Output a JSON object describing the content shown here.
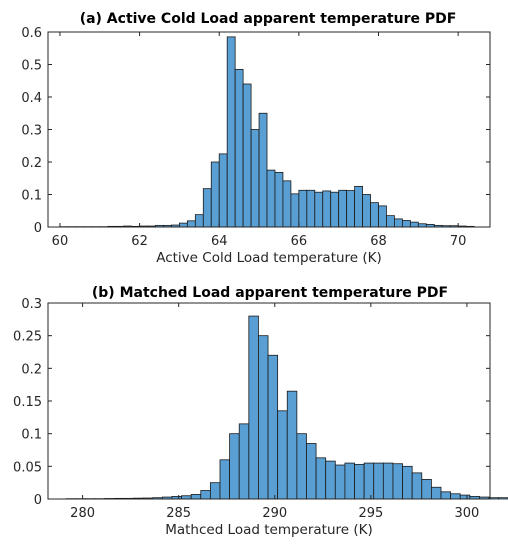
{
  "chart_data": [
    {
      "type": "bar",
      "title": "(a) Active Cold Load apparent temperature PDF",
      "xlabel": "Active Cold Load temperature (K)",
      "ylabel": "",
      "xlim": [
        59.7,
        70.8
      ],
      "ylim": [
        0,
        0.6
      ],
      "xticks": [
        60,
        62,
        64,
        66,
        68,
        70
      ],
      "xtick_labels": [
        "60",
        "62",
        "64",
        "66",
        "68",
        "70"
      ],
      "yticks": [
        0,
        0.1,
        0.2,
        0.3,
        0.4,
        0.5,
        0.6
      ],
      "ytick_labels": [
        "0",
        "0.1",
        "0.2",
        "0.3",
        "0.4",
        "0.5",
        "0.6"
      ],
      "bin_start": 60.0,
      "bin_width": 0.2,
      "values": [
        0.001,
        0.001,
        0.001,
        0.001,
        0.001,
        0.001,
        0.002,
        0.002,
        0.003,
        0.002,
        0.003,
        0.003,
        0.005,
        0.005,
        0.006,
        0.012,
        0.019,
        0.038,
        0.118,
        0.2,
        0.225,
        0.585,
        0.485,
        0.44,
        0.3,
        0.35,
        0.175,
        0.168,
        0.142,
        0.102,
        0.113,
        0.113,
        0.107,
        0.111,
        0.107,
        0.113,
        0.112,
        0.125,
        0.1,
        0.075,
        0.065,
        0.035,
        0.025,
        0.02,
        0.015,
        0.01,
        0.008,
        0.005,
        0.004,
        0.004,
        0.003,
        0.002
      ]
    },
    {
      "type": "bar",
      "title": "(b) Matched Load apparent temperature PDF",
      "xlabel": "Mathced Load temperature (K)",
      "ylabel": "",
      "xlim": [
        278.2,
        301.2
      ],
      "ylim": [
        0,
        0.3
      ],
      "xticks": [
        280,
        285,
        290,
        295,
        300
      ],
      "xtick_labels": [
        "280",
        "285",
        "290",
        "295",
        "300"
      ],
      "yticks": [
        0,
        0.05,
        0.1,
        0.15,
        0.2,
        0.25,
        0.3
      ],
      "ytick_labels": [
        "0",
        "0.05",
        "0.1",
        "0.15",
        "0.2",
        "0.25",
        "0.3"
      ],
      "bin_start": 279.15,
      "bin_width": 0.5,
      "values": [
        0.0005,
        0.0005,
        0.0005,
        0.0005,
        0.0008,
        0.001,
        0.001,
        0.0013,
        0.0015,
        0.002,
        0.003,
        0.004,
        0.005,
        0.007,
        0.013,
        0.025,
        0.06,
        0.1,
        0.115,
        0.28,
        0.25,
        0.22,
        0.135,
        0.165,
        0.1,
        0.085,
        0.063,
        0.058,
        0.052,
        0.055,
        0.053,
        0.055,
        0.055,
        0.055,
        0.054,
        0.05,
        0.04,
        0.03,
        0.018,
        0.011,
        0.008,
        0.006,
        0.004,
        0.003,
        0.002,
        0.002,
        0.002,
        0.0015,
        0.001,
        0.001,
        0.001
      ]
    }
  ]
}
